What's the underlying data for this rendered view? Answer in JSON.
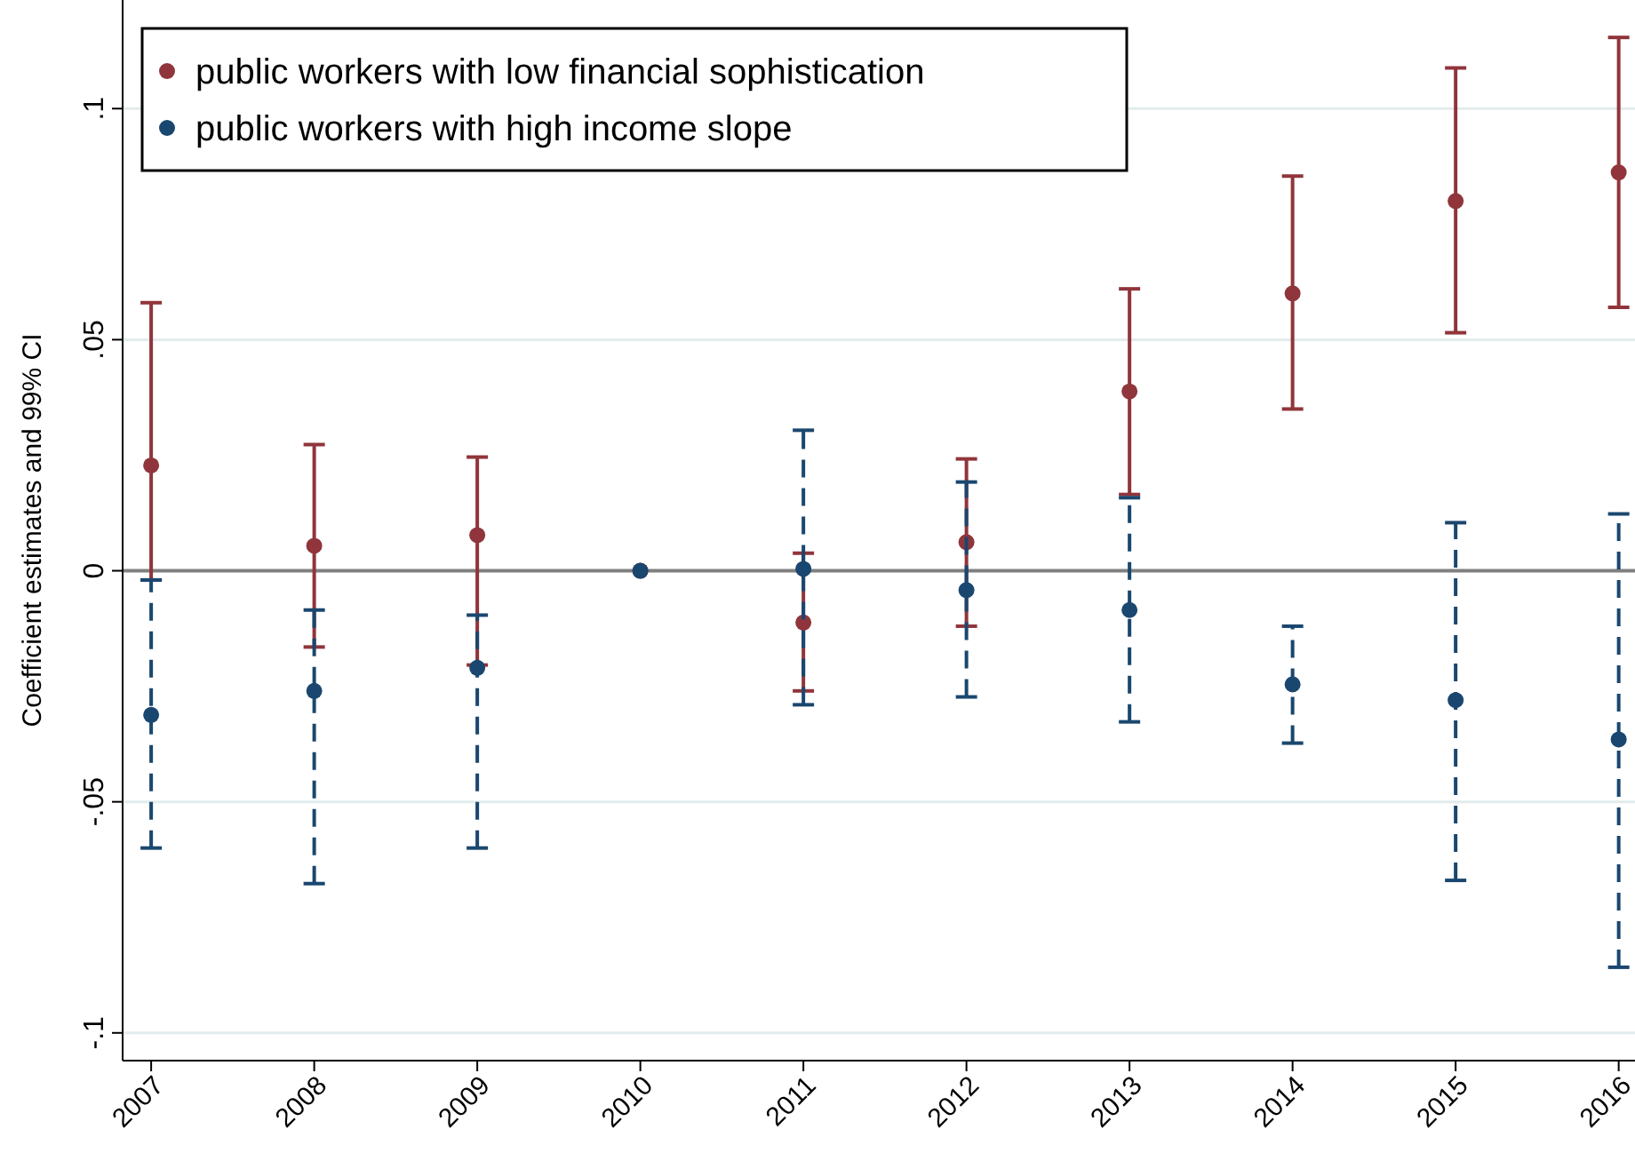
{
  "chart_data": {
    "type": "scatter",
    "ylabel": "Coefficient estimates and 99% CI",
    "categories": [
      "2007",
      "2008",
      "2009",
      "2010",
      "2011",
      "2012",
      "2013",
      "2014",
      "2015",
      "2016"
    ],
    "series": [
      {
        "name": "public workers with low financial sophistication",
        "color": "#90353b",
        "line_style": "solid",
        "values": [
          0.0228,
          0.0054,
          0.0077,
          0,
          -0.0112,
          0.0062,
          0.0388,
          0.06,
          0.08,
          0.0862
        ],
        "errors": [
          [
            -0.002,
            0.058
          ],
          [
            -0.0165,
            0.0273
          ],
          [
            -0.0204,
            0.0246
          ],
          null,
          [
            -0.026,
            0.0038
          ],
          [
            -0.012,
            0.0242
          ],
          [
            0.0165,
            0.061
          ],
          [
            0.035,
            0.0854
          ],
          [
            0.0515,
            0.1088
          ],
          [
            0.057,
            0.1154
          ]
        ]
      },
      {
        "name": "public workers with high income slope",
        "color": "#1a476f",
        "line_style": "dashed",
        "values": [
          -0.0312,
          -0.026,
          -0.021,
          0,
          0.0004,
          -0.0042,
          -0.0085,
          -0.0246,
          -0.028,
          -0.0365
        ],
        "errors": [
          [
            -0.06,
            -0.002
          ],
          [
            -0.0677,
            -0.0085
          ],
          [
            -0.06,
            -0.0096
          ],
          null,
          [
            -0.029,
            0.0304
          ],
          [
            -0.0273,
            0.0192
          ],
          [
            -0.0327,
            0.0158
          ],
          [
            -0.0373,
            -0.012
          ],
          [
            -0.067,
            0.0104
          ],
          [
            -0.0858,
            0.0123
          ]
        ]
      }
    ],
    "ylim": [
      -0.106,
      0.1235
    ],
    "yticks": [
      {
        "value": -0.1,
        "label": "-.1"
      },
      {
        "value": -0.05,
        "label": "-.05"
      },
      {
        "value": 0,
        "label": "0"
      },
      {
        "value": 0.05,
        "label": ".05"
      },
      {
        "value": 0.1,
        "label": ".1"
      }
    ],
    "grid": "y",
    "legend": "top left",
    "marker": "circle",
    "ref_lines": [
      {
        "axis": "y",
        "value": 0,
        "color": "#808080"
      }
    ]
  }
}
